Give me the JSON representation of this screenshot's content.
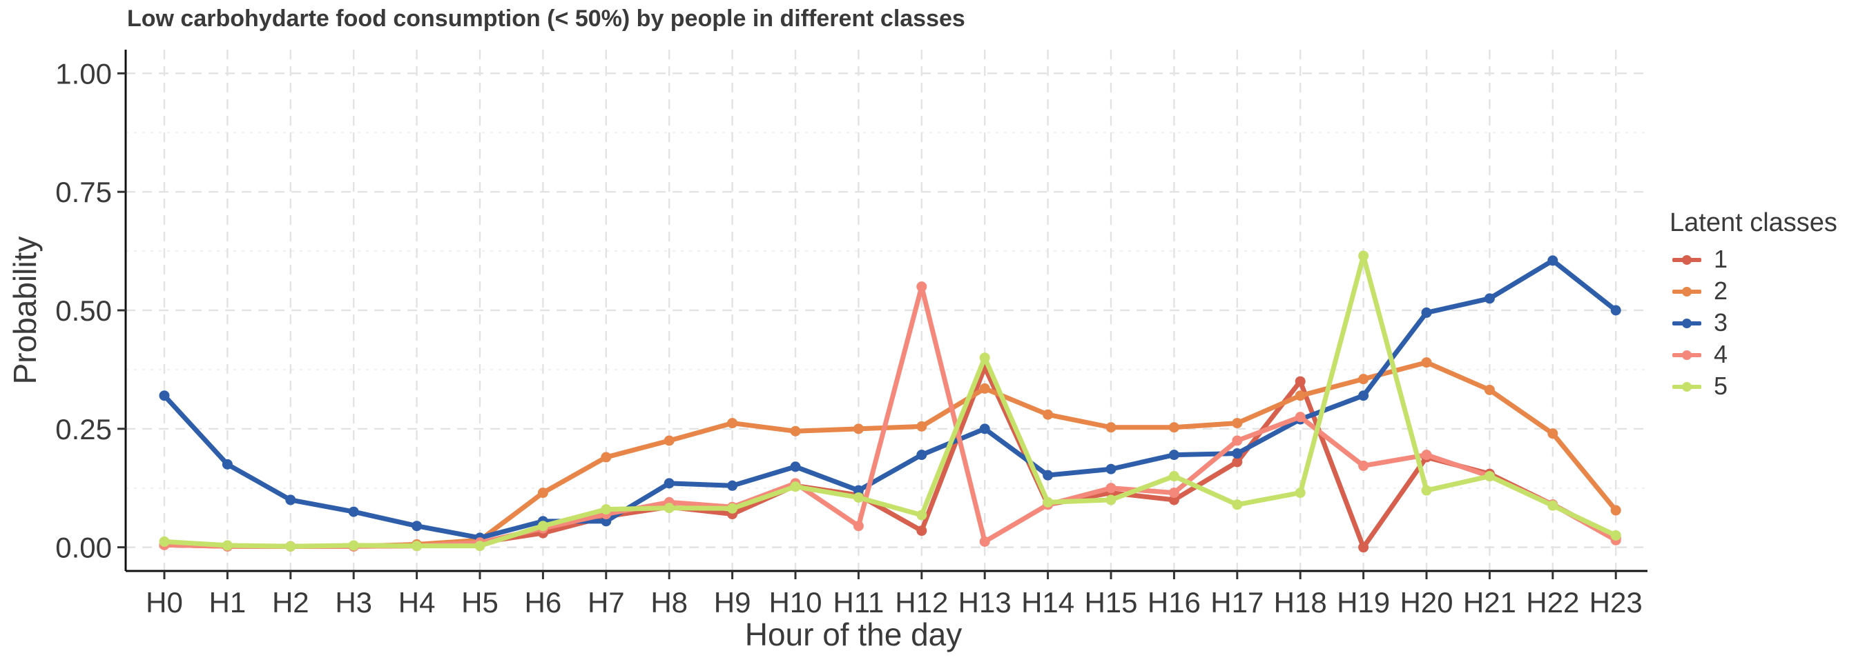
{
  "chart_data": {
    "type": "line",
    "title": "Low carbohydarte food consumption (< 50%) by people in different classes",
    "xlabel": "Hour of the day",
    "ylabel": "Probability",
    "categories": [
      "H0",
      "H1",
      "H2",
      "H3",
      "H4",
      "H5",
      "H6",
      "H7",
      "H8",
      "H9",
      "H10",
      "H11",
      "H12",
      "H13",
      "H14",
      "H15",
      "H16",
      "H17",
      "H18",
      "H19",
      "H20",
      "H21",
      "H22",
      "H23"
    ],
    "ylim": [
      -0.05,
      1.05
    ],
    "yticks": [
      0.0,
      0.25,
      0.5,
      0.75,
      1.0
    ],
    "ytick_labels": [
      "0.00",
      "0.25",
      "0.50",
      "0.75",
      "1.00"
    ],
    "grid": true,
    "legend_title": "Latent classes",
    "legend_position": "right",
    "series": [
      {
        "name": "1",
        "color": "#d6604d",
        "values": [
          0.005,
          0.002,
          0.002,
          0.002,
          0.003,
          0.01,
          0.03,
          0.065,
          0.085,
          0.07,
          0.13,
          0.11,
          0.035,
          0.38,
          0.09,
          0.115,
          0.1,
          0.18,
          0.35,
          0.0,
          0.19,
          0.155,
          0.09,
          0.02
        ]
      },
      {
        "name": "2",
        "color": "#e8864a",
        "values": [
          0.005,
          0.002,
          0.002,
          0.002,
          0.006,
          0.015,
          0.115,
          0.19,
          0.225,
          0.262,
          0.245,
          0.25,
          0.255,
          0.335,
          0.28,
          0.253,
          0.253,
          0.262,
          0.32,
          0.355,
          0.39,
          0.332,
          0.24,
          0.078
        ]
      },
      {
        "name": "3",
        "color": "#2e5eaa",
        "values": [
          0.32,
          0.175,
          0.1,
          0.075,
          0.045,
          0.02,
          0.055,
          0.055,
          0.135,
          0.13,
          0.17,
          0.12,
          0.195,
          0.25,
          0.152,
          0.165,
          0.195,
          0.198,
          0.27,
          0.32,
          0.495,
          0.525,
          0.605,
          0.5
        ]
      },
      {
        "name": "4",
        "color": "#f4897b",
        "values": [
          0.005,
          0.002,
          0.002,
          0.002,
          0.003,
          0.01,
          0.04,
          0.07,
          0.095,
          0.085,
          0.135,
          0.045,
          0.55,
          0.012,
          0.09,
          0.125,
          0.115,
          0.225,
          0.275,
          0.172,
          0.195,
          0.15,
          0.09,
          0.015
        ]
      },
      {
        "name": "5",
        "color": "#c5e16a",
        "values": [
          0.012,
          0.004,
          0.002,
          0.004,
          0.003,
          0.003,
          0.045,
          0.08,
          0.083,
          0.082,
          0.128,
          0.105,
          0.068,
          0.4,
          0.095,
          0.1,
          0.15,
          0.09,
          0.115,
          0.615,
          0.12,
          0.15,
          0.088,
          0.025
        ]
      }
    ]
  }
}
